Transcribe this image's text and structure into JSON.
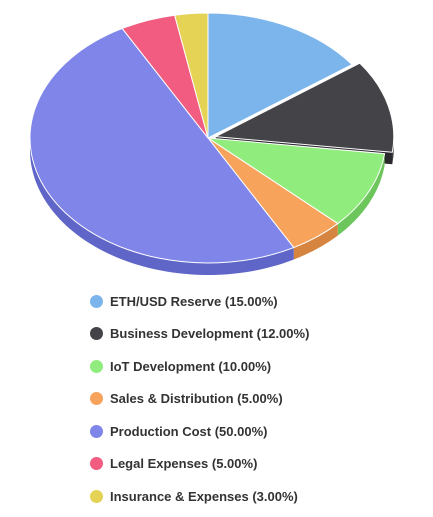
{
  "chart_data": {
    "type": "pie",
    "title": "",
    "legend_position": "bottom",
    "series": [
      {
        "label": "ETH/USD Reserve (15.00%)",
        "name": "ETH/USD Reserve",
        "value": 15.0,
        "color": "#7cb5ec",
        "side": "#6090c4",
        "sliced": false
      },
      {
        "label": "Business Development (12.00%)",
        "name": "Business Development",
        "value": 12.0,
        "color": "#434348",
        "side": "#2a2a2e",
        "sliced": true
      },
      {
        "label": "IoT Development (10.00%)",
        "name": "IoT Development",
        "value": 10.0,
        "color": "#90ed7d",
        "side": "#6cc65c",
        "sliced": false
      },
      {
        "label": "Sales & Distribution (5.00%)",
        "name": "Sales & Distribution",
        "value": 5.0,
        "color": "#f7a35c",
        "side": "#d5853f",
        "sliced": false
      },
      {
        "label": "Production Cost (50.00%)",
        "name": "Production Cost",
        "value": 50.0,
        "color": "#8085e9",
        "side": "#6065c8",
        "sliced": false
      },
      {
        "label": "Legal Expenses (5.00%)",
        "name": "Legal Expenses",
        "value": 5.0,
        "color": "#f15c80",
        "side": "#cc3e60",
        "sliced": false
      },
      {
        "label": "Insurance & Expenses (3.00%)",
        "name": "Insurance & Expenses",
        "value": 3.0,
        "color": "#e4d354",
        "side": "#bfae39",
        "sliced": false
      }
    ]
  }
}
